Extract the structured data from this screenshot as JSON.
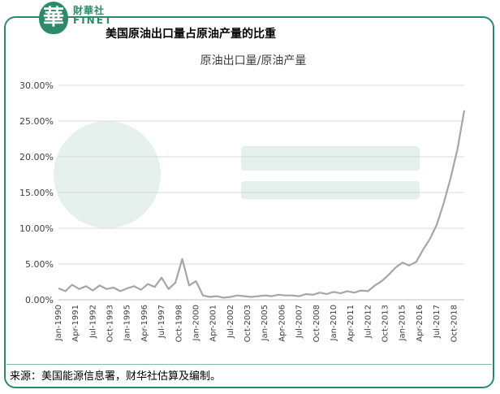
{
  "brand": {
    "cn": "財華社",
    "en": "FINET"
  },
  "header": {
    "title": "美国原油出口量占原油产量的比重"
  },
  "source_note": "来源：美国能源信息署，财华社估算及编制。",
  "colors": {
    "accent": "#2e8b6a",
    "line": "#a6a6a6",
    "grid": "#d9d9d9"
  },
  "chart_data": {
    "type": "line",
    "title": "原油出口量/原油产量",
    "xlabel": "",
    "ylabel": "",
    "yticks": [
      "0.00%",
      "5.00%",
      "10.00%",
      "15.00%",
      "20.00%",
      "25.00%",
      "30.00%"
    ],
    "ylim": [
      0,
      30
    ],
    "grid": true,
    "xticks": [
      "Jan-1990",
      "Apr-1991",
      "Jul-1992",
      "Oct-1993",
      "Jan-1995",
      "Apr-1996",
      "Jul-1997",
      "Oct-1998",
      "Jan-2000",
      "Apr-2001",
      "Jul-2002",
      "Oct-2003",
      "Jan-2005",
      "Apr-2006",
      "Jul-2007",
      "Oct-2008",
      "Jan-2010",
      "Apr-2011",
      "Jul-2012",
      "Oct-2013",
      "Jan-2015",
      "Apr-2016",
      "Jul-2017",
      "Oct-2018"
    ],
    "series": [
      {
        "x": [
          "Jan-1990",
          "Jul-1990",
          "Jan-1991",
          "Jul-1991",
          "Jan-1992",
          "Jul-1992",
          "Jan-1993",
          "Jul-1993",
          "Jan-1994",
          "Jul-1994",
          "Jan-1995",
          "Jul-1995",
          "Jan-1996",
          "Jul-1996",
          "Jan-1997",
          "Jul-1997",
          "Jan-1998",
          "Jul-1998",
          "Jan-1999",
          "Jul-1999",
          "Jan-2000",
          "Jul-2000",
          "Jan-2001",
          "Jul-2001",
          "Jan-2002",
          "Jul-2002",
          "Jan-2003",
          "Jul-2003",
          "Jan-2004",
          "Jul-2004",
          "Jan-2005",
          "Jul-2005",
          "Jan-2006",
          "Jul-2006",
          "Jan-2007",
          "Jul-2007",
          "Jan-2008",
          "Jul-2008",
          "Jan-2009",
          "Jul-2009",
          "Jan-2010",
          "Jul-2010",
          "Jan-2011",
          "Jul-2011",
          "Jan-2012",
          "Jul-2012",
          "Jan-2013",
          "Jul-2013",
          "Jan-2014",
          "Jul-2014",
          "Jan-2015",
          "Jul-2015",
          "Jan-2016",
          "Jul-2016",
          "Jan-2017",
          "Jul-2017",
          "Jan-2018",
          "Jul-2018",
          "Jan-2019",
          "Jul-2019"
        ],
        "values": [
          1.6,
          1.2,
          2.1,
          1.5,
          1.9,
          1.3,
          2.0,
          1.5,
          1.7,
          1.2,
          1.6,
          1.9,
          1.4,
          2.2,
          1.8,
          3.1,
          1.5,
          2.4,
          5.7,
          2.0,
          2.6,
          0.6,
          0.4,
          0.5,
          0.3,
          0.4,
          0.6,
          0.5,
          0.4,
          0.5,
          0.6,
          0.5,
          0.7,
          0.6,
          0.6,
          0.5,
          0.8,
          0.7,
          1.0,
          0.8,
          1.1,
          0.9,
          1.2,
          1.0,
          1.3,
          1.2,
          2.0,
          2.6,
          3.5,
          4.5,
          5.2,
          4.8,
          5.3,
          7.0,
          8.5,
          10.5,
          13.5,
          17.0,
          21.0,
          26.5
        ]
      }
    ]
  }
}
